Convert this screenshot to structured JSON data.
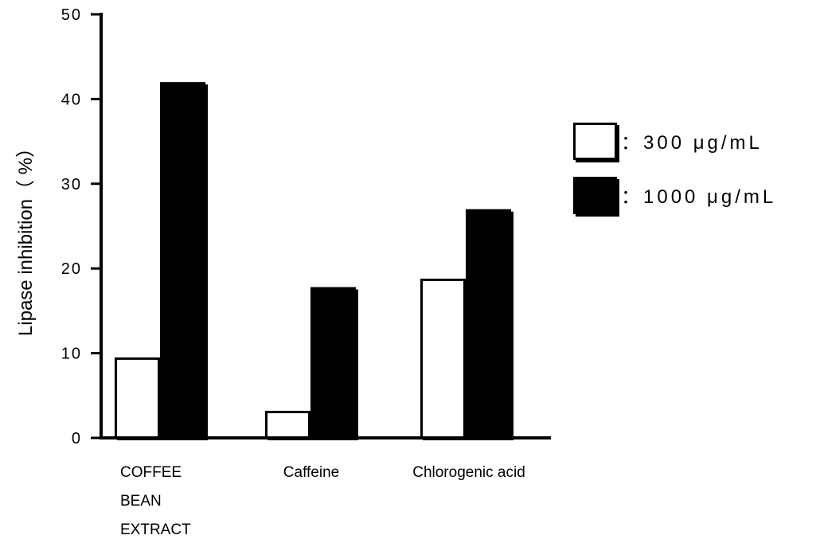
{
  "chart_data": {
    "type": "bar",
    "title": "",
    "ylabel": "Lipase inhibition（ %）",
    "xlabel": "",
    "ylim": [
      0,
      50
    ],
    "yticks": [
      0,
      10,
      20,
      30,
      40,
      50
    ],
    "grid": false,
    "legend_position": "right",
    "categories": [
      [
        "COFFEE",
        "BEAN",
        "EXTRACT"
      ],
      [
        "Caffeine"
      ],
      [
        "Chlorogenic acid"
      ]
    ],
    "series": [
      {
        "name": "300 μg/mL",
        "label": "：300 μg/mL",
        "fill": "#ffffff",
        "values": [
          9.5,
          3.2,
          18.8
        ]
      },
      {
        "name": "1000 μg/mL",
        "label": "：1000 μg/mL",
        "fill": "#000000",
        "values": [
          42.0,
          17.8,
          27.0
        ]
      }
    ]
  },
  "colors": {
    "axis": "#000000",
    "open_bar": "#ffffff",
    "filled_bar": "#000000"
  }
}
